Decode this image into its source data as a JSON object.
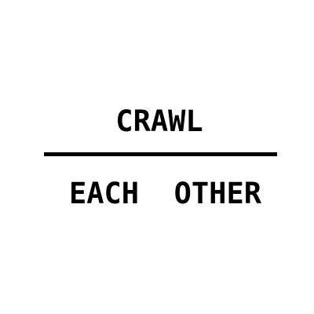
{
  "puzzle": {
    "top_text": "CRAWL",
    "bottom_text": "EACH  OTHER",
    "text_color": "#000000",
    "line_color": "#000000",
    "background_color": "#ffffff"
  }
}
